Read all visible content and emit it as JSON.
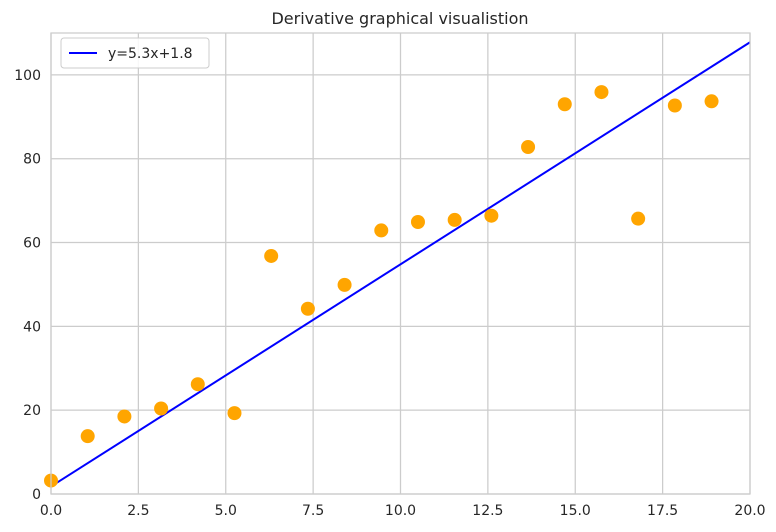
{
  "chart_data": {
    "type": "scatter",
    "title": "Derivative graphical visualistion",
    "xlabel": "",
    "ylabel": "",
    "xlim": [
      0,
      20
    ],
    "ylim": [
      0,
      110
    ],
    "x_ticks": [
      "0.0",
      "2.5",
      "5.0",
      "7.5",
      "10.0",
      "12.5",
      "15.0",
      "17.5",
      "20.0"
    ],
    "y_ticks": [
      "0",
      "20",
      "40",
      "60",
      "80",
      "100"
    ],
    "grid": true,
    "legend": {
      "placement": "top-left",
      "entries": [
        "y=5.3x+1.8"
      ]
    },
    "series": [
      {
        "kind": "scatter",
        "color": "#ffa500",
        "x": [
          0.0,
          1.05,
          2.1,
          3.15,
          4.2,
          5.25,
          6.3,
          7.35,
          8.4,
          9.45,
          10.5,
          11.55,
          12.6,
          13.65,
          14.7,
          15.75,
          16.8,
          17.85,
          18.9
        ],
        "y": [
          3.2,
          13.8,
          18.5,
          20.4,
          26.2,
          19.3,
          56.8,
          44.2,
          49.9,
          62.9,
          64.9,
          65.4,
          66.4,
          82.8,
          93.0,
          95.9,
          65.7,
          92.7,
          93.7
        ]
      },
      {
        "kind": "line",
        "name": "y=5.3x+1.8",
        "color": "#0000ff",
        "slope": 5.3,
        "intercept": 1.8
      }
    ]
  }
}
